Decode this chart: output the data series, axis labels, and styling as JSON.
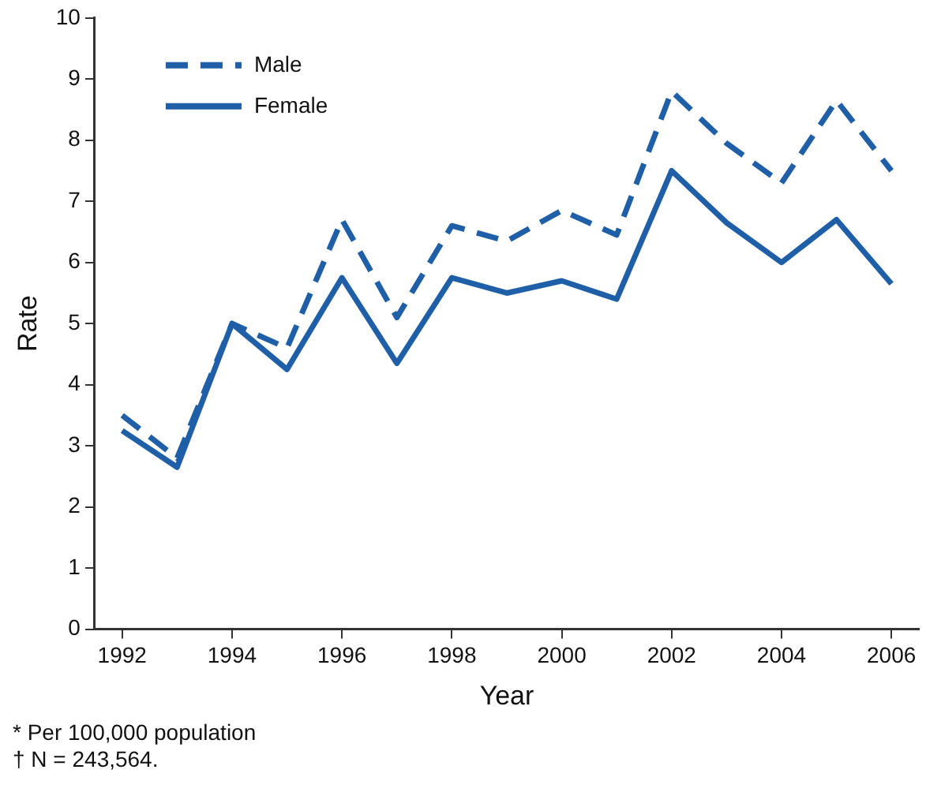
{
  "chart_data": {
    "type": "line",
    "xlabel": "Year",
    "ylabel": "Rate",
    "x": [
      1992,
      1993,
      1994,
      1995,
      1996,
      1997,
      1998,
      1999,
      2000,
      2001,
      2002,
      2003,
      2004,
      2005,
      2006
    ],
    "series": [
      {
        "name": "Male",
        "color": "#1f5fa8",
        "line_style": "dashed",
        "values": [
          3.5,
          2.8,
          5.0,
          4.6,
          6.7,
          5.1,
          6.6,
          6.35,
          6.85,
          6.45,
          8.8,
          7.95,
          7.3,
          8.65,
          7.5
        ]
      },
      {
        "name": "Female",
        "color": "#1f5fa8",
        "line_style": "solid",
        "values": [
          3.25,
          2.65,
          5.0,
          4.25,
          5.75,
          4.35,
          5.75,
          5.5,
          5.7,
          5.4,
          7.5,
          6.65,
          6.0,
          6.7,
          5.65
        ]
      }
    ],
    "xlim": [
      1991.5,
      2006.5
    ],
    "xticks": [
      1992,
      1994,
      1996,
      1998,
      2000,
      2002,
      2004,
      2006
    ],
    "ylim": [
      0,
      10
    ],
    "yticks": [
      0,
      1,
      2,
      3,
      4,
      5,
      6,
      7,
      8,
      9,
      10
    ],
    "grid": false,
    "legend": "top left",
    "marker": "none",
    "annotations": [
      "* Per 100,000 population",
      "† N = 243,564."
    ]
  }
}
